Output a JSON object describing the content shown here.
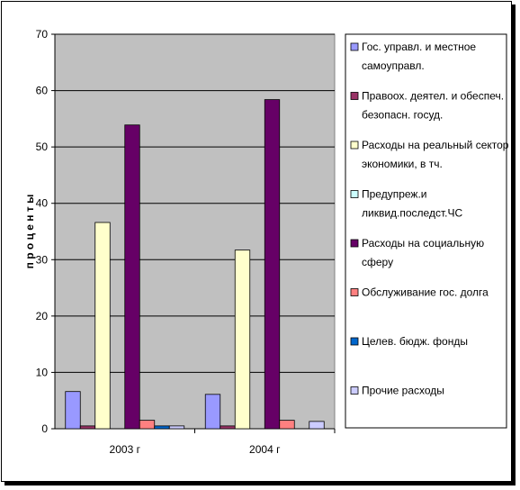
{
  "chart_data": {
    "type": "bar",
    "categories": [
      "2003 г",
      "2004 г"
    ],
    "ylabel": "п р о ц е н т ы",
    "ylim": [
      0,
      70
    ],
    "yticks": [
      0,
      10,
      20,
      30,
      40,
      50,
      60,
      70
    ],
    "grid": true,
    "legend_position": "right",
    "series": [
      {
        "name": "Гос. управл. и местное самоуправл.",
        "legend_lines": [
          "Гос. управл. и местное",
          "самоуправл."
        ],
        "color": "#9999ff",
        "values": [
          6.6,
          6.1
        ]
      },
      {
        "name": "Правоох. деятел. и обеспеч. безопасн. госуд.",
        "legend_lines": [
          "Правоох. деятел. и обеспеч.",
          "безопасн. госуд."
        ],
        "color": "#993366",
        "values": [
          0.5,
          0.5
        ]
      },
      {
        "name": "Расходы на реальный сектор экономики, в тч.",
        "legend_lines": [
          "Расходы на реальный сектор",
          "экономики, в тч."
        ],
        "color": "#ffffcc",
        "values": [
          36.6,
          31.7
        ]
      },
      {
        "name": "Предупреж.и ликвид.последст.ЧС",
        "legend_lines": [
          "Предупреж.и",
          "ликвид.последст.ЧС"
        ],
        "color": "#ccffff",
        "values": [
          0,
          0
        ]
      },
      {
        "name": "Расходы на социальную сферу",
        "legend_lines": [
          "Расходы на социальную",
          "сферу"
        ],
        "color": "#660066",
        "values": [
          53.9,
          58.4
        ]
      },
      {
        "name": "Обслуживание гос. долга",
        "legend_lines": [
          "Обслуживание гос. долга"
        ],
        "color": "#ff8080",
        "values": [
          1.5,
          1.5
        ]
      },
      {
        "name": "Целев. бюдж. фонды",
        "legend_lines": [
          "Целев. бюдж. фонды"
        ],
        "color": "#0066cc",
        "values": [
          0.5,
          0
        ]
      },
      {
        "name": "Прочие расходы",
        "legend_lines": [
          "Прочие расходы"
        ],
        "color": "#ccccff",
        "values": [
          0.5,
          1.3
        ]
      }
    ]
  }
}
